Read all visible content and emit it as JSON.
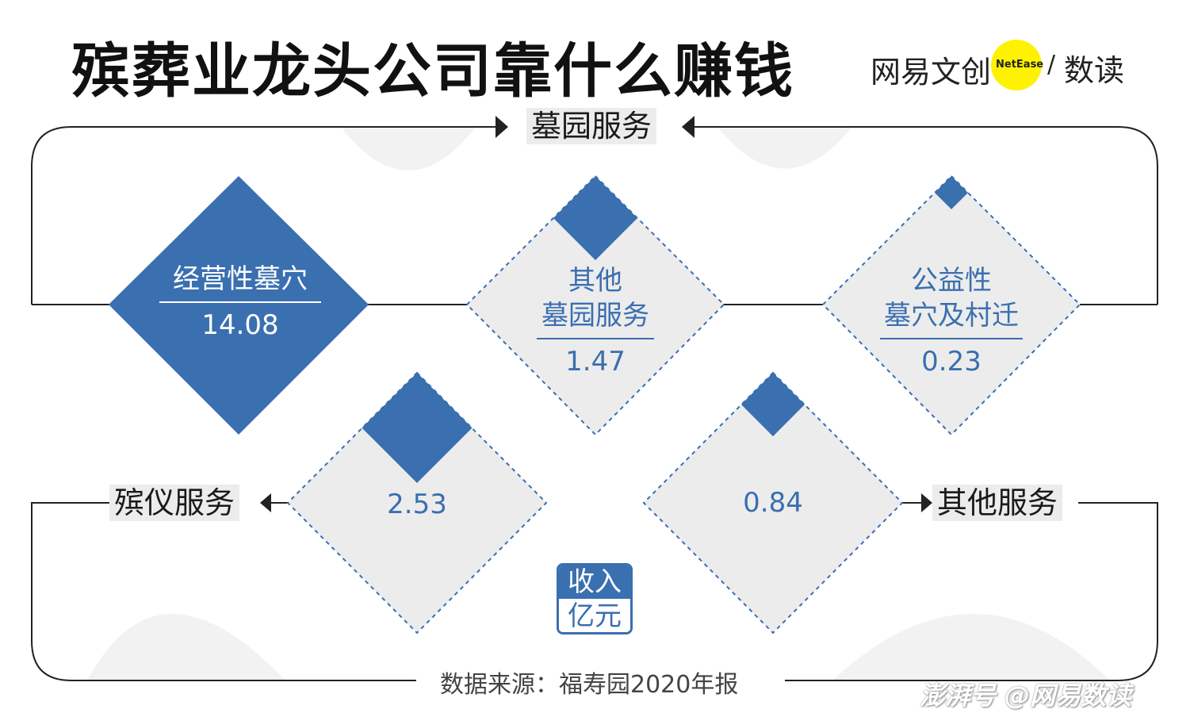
{
  "title": "殡葬业龙头公司靠什么赚钱",
  "brand": {
    "left": "网易文创",
    "badge": "NetEase",
    "slash": "/",
    "right": "数读",
    "badge_color": "#fff200"
  },
  "categories": {
    "top": "墓园服务",
    "left": "殡仪服务",
    "right": "其他服务"
  },
  "colors": {
    "accent": "#3a6fb0",
    "diamond_fill": "#ececec",
    "line": "#222222"
  },
  "chart_data": {
    "type": "diamond-infographic",
    "unit": "亿元",
    "items": [
      {
        "group": "墓园服务",
        "label": "经营性墓穴",
        "value": 14.08
      },
      {
        "group": "墓园服务",
        "label": "其他墓园服务",
        "value": 1.47
      },
      {
        "group": "墓园服务",
        "label": "公益性墓穴及村迁",
        "value": 0.23
      },
      {
        "group": "殡仪服务",
        "label": "",
        "value": 2.53
      },
      {
        "group": "其他服务",
        "label": "",
        "value": 0.84
      }
    ]
  },
  "labels": {
    "d1": "经营性墓穴",
    "d2_line1": "其他",
    "d2_line2": "墓园服务",
    "d3_line1": "公益性",
    "d3_line2": "墓穴及村迁"
  },
  "values_text": {
    "d1": "14.08",
    "d2": "1.47",
    "d3": "0.23",
    "d4": "2.53",
    "d5": "0.84"
  },
  "unit_badge": {
    "line1": "收入",
    "line2": "亿元"
  },
  "source": "数据来源：福寿园2020年报",
  "watermark": "澎湃号 @网易数读"
}
